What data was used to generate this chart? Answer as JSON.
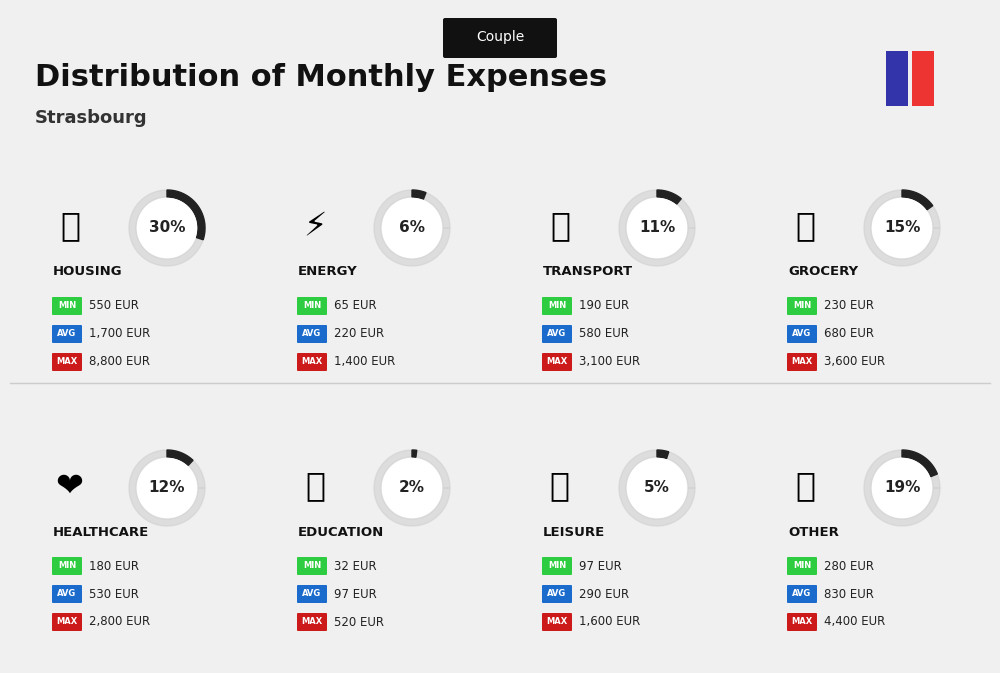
{
  "title": "Distribution of Monthly Expenses",
  "subtitle": "Strasbourg",
  "tag": "Couple",
  "bg_color": "#f0f0f0",
  "categories": [
    {
      "name": "HOUSING",
      "pct": 30,
      "min_val": "550 EUR",
      "avg_val": "1,700 EUR",
      "max_val": "8,800 EUR",
      "row": 0,
      "col": 0
    },
    {
      "name": "ENERGY",
      "pct": 6,
      "min_val": "65 EUR",
      "avg_val": "220 EUR",
      "max_val": "1,400 EUR",
      "row": 0,
      "col": 1
    },
    {
      "name": "TRANSPORT",
      "pct": 11,
      "min_val": "190 EUR",
      "avg_val": "580 EUR",
      "max_val": "3,100 EUR",
      "row": 0,
      "col": 2
    },
    {
      "name": "GROCERY",
      "pct": 15,
      "min_val": "230 EUR",
      "avg_val": "680 EUR",
      "max_val": "3,600 EUR",
      "row": 0,
      "col": 3
    },
    {
      "name": "HEALTHCARE",
      "pct": 12,
      "min_val": "180 EUR",
      "avg_val": "530 EUR",
      "max_val": "2,800 EUR",
      "row": 1,
      "col": 0
    },
    {
      "name": "EDUCATION",
      "pct": 2,
      "min_val": "32 EUR",
      "avg_val": "97 EUR",
      "max_val": "520 EUR",
      "row": 1,
      "col": 1
    },
    {
      "name": "LEISURE",
      "pct": 5,
      "min_val": "97 EUR",
      "avg_val": "290 EUR",
      "max_val": "1,600 EUR",
      "row": 1,
      "col": 2
    },
    {
      "name": "OTHER",
      "pct": 19,
      "min_val": "280 EUR",
      "avg_val": "830 EUR",
      "max_val": "4,400 EUR",
      "row": 1,
      "col": 3
    }
  ],
  "min_color": "#2ecc40",
  "avg_color": "#1a6bcc",
  "max_color": "#cc1a1a",
  "label_color": "#ffffff",
  "pct_color": "#222222",
  "name_color": "#111111",
  "ring_filled_color": "#222222",
  "ring_empty_color": "#cccccc",
  "france_blue": "#3333aa",
  "france_red": "#ee3333"
}
